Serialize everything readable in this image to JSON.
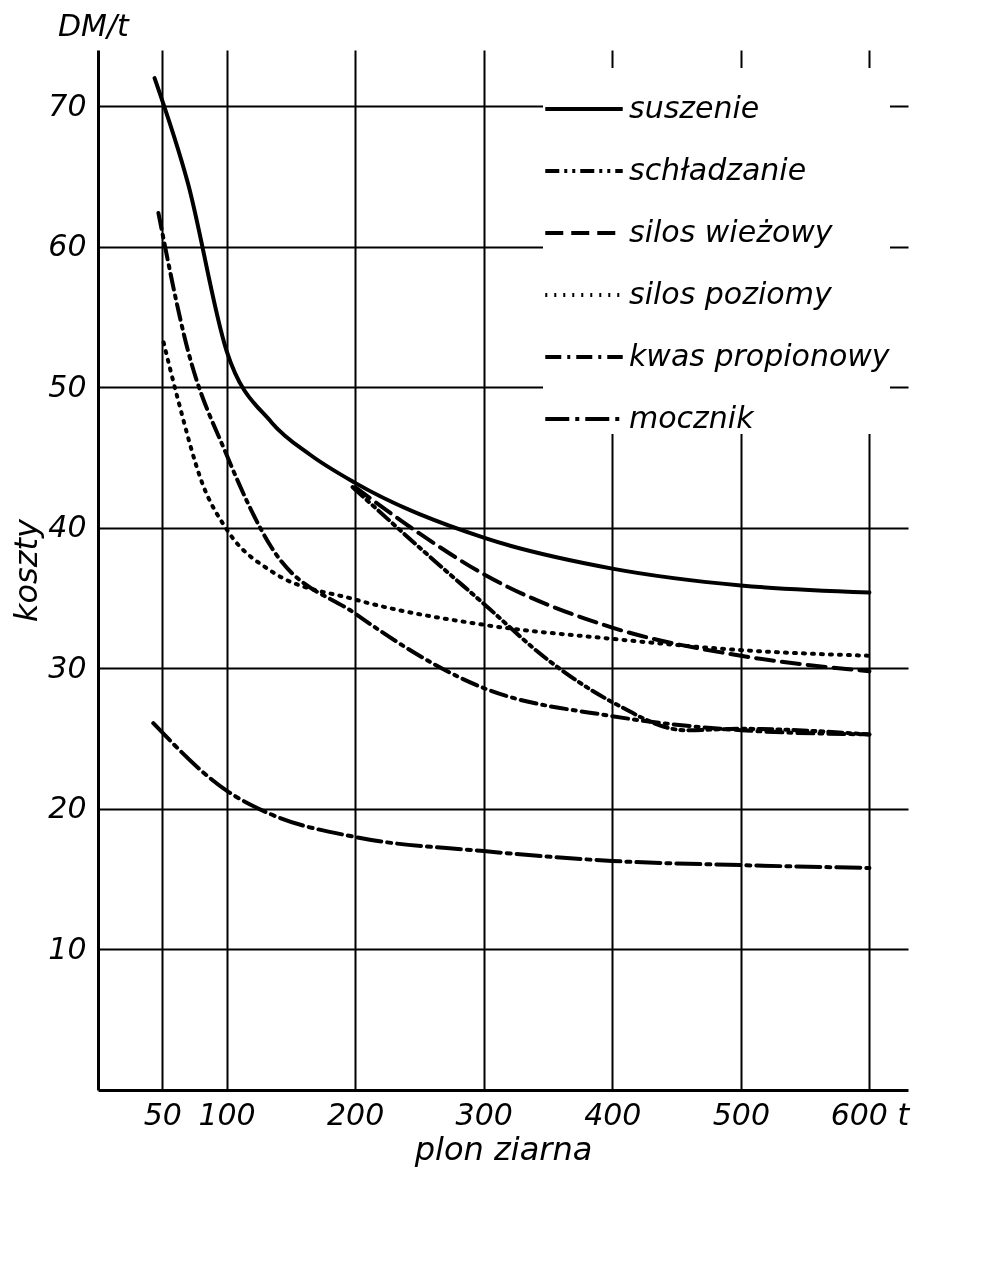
{
  "chart_data": {
    "type": "line",
    "xlabel": "plon ziarna",
    "ylabel": "koszty",
    "annotations": [
      "DM/t"
    ],
    "xlim": [
      0,
      630
    ],
    "ylim": [
      0,
      74
    ],
    "xticks": [
      50,
      100,
      200,
      300,
      400,
      500,
      {
        "value": 600,
        "label": "600 t"
      }
    ],
    "yticks": [
      10,
      20,
      30,
      40,
      50,
      60,
      70
    ],
    "grid": true,
    "legend": "top right",
    "marker": "none",
    "series": [
      {
        "name": "suszenie",
        "color": "#000000",
        "line_style": "solid",
        "x": [
          44,
          70,
          100,
          135,
          165,
          200,
          300,
          400,
          500,
          600
        ],
        "values": [
          72,
          64.5,
          52.6,
          47.5,
          45.2,
          43.2,
          39.3,
          37.1,
          35.9,
          35.4
        ]
      },
      {
        "name": "schładzanie",
        "color": "#000000",
        "line_style": "dashdotdot",
        "x": [
          198,
          250,
          300,
          350,
          400,
          457,
          500,
          600
        ],
        "values": [
          42.9,
          38.6,
          34.6,
          30.6,
          27.6,
          25.6,
          25.7,
          25.3
        ]
      },
      {
        "name": "silos wieżowy",
        "color": "#000000",
        "line_style": "dashed",
        "x": [
          200,
          250,
          300,
          400,
          500,
          600
        ],
        "values": [
          42.9,
          39.6,
          36.7,
          32.9,
          30.9,
          29.8
        ]
      },
      {
        "name": "silos poziomy",
        "color": "#000000",
        "line_style": "dotted",
        "x": [
          51,
          62,
          81,
          100,
          135,
          200,
          300,
          400,
          500,
          600
        ],
        "values": [
          53.2,
          49.2,
          43.2,
          39.9,
          36.9,
          34.9,
          33.1,
          32.1,
          31.3,
          30.9
        ]
      },
      {
        "name": "kwas propionowy",
        "color": "#000000",
        "line_style": "dashdot",
        "x": [
          47,
          70,
          100,
          135,
          200,
          300,
          400,
          500,
          600
        ],
        "values": [
          62.4,
          52.6,
          45.2,
          38.6,
          33.9,
          28.6,
          26.6,
          25.6,
          25.3
        ]
      },
      {
        "name": "mocznik",
        "color": "#000000",
        "line_style": "longdashdot",
        "x": [
          43,
          100,
          135,
          200,
          300,
          400,
          500,
          600
        ],
        "values": [
          26.1,
          21.3,
          19.6,
          18.0,
          17.0,
          16.3,
          16.0,
          15.8
        ]
      }
    ]
  }
}
